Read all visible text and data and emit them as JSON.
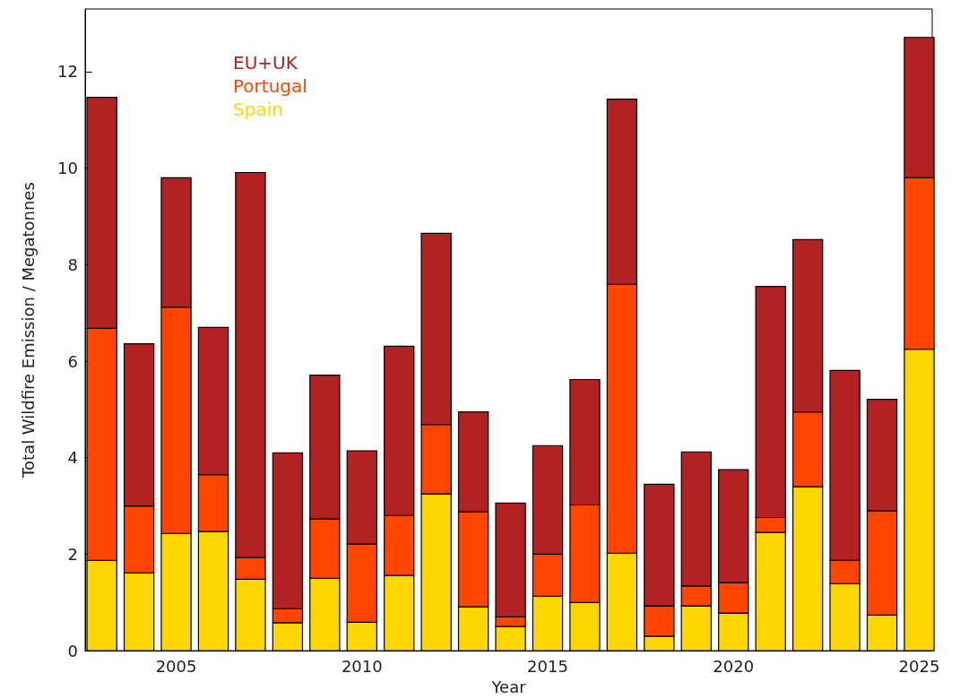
{
  "chart_data": {
    "type": "bar",
    "stacked": true,
    "xlabel": "Year",
    "ylabel": "Total Wildfire Emission / Megatonnes",
    "x": [
      2003,
      2004,
      2005,
      2006,
      2007,
      2008,
      2009,
      2010,
      2011,
      2012,
      2013,
      2014,
      2015,
      2016,
      2017,
      2018,
      2019,
      2020,
      2021,
      2022,
      2023,
      2024,
      2025
    ],
    "xlim": [
      2002.55,
      2025.35
    ],
    "xticks": [
      2005,
      2010,
      2015,
      2020,
      2025
    ],
    "ylim": [
      0,
      13.3
    ],
    "yticks": [
      0,
      2,
      4,
      6,
      8,
      10,
      12
    ],
    "grid": false,
    "legend": "top left",
    "series": [
      {
        "name": "Spain",
        "color": "#ffd700",
        "values": [
          1.87,
          1.61,
          2.43,
          2.47,
          1.48,
          0.58,
          1.5,
          0.59,
          1.56,
          3.25,
          0.91,
          0.5,
          1.13,
          1.0,
          2.02,
          0.3,
          0.93,
          0.78,
          2.45,
          3.4,
          1.39,
          0.74,
          6.25
        ]
      },
      {
        "name": "Portugal",
        "color": "#ff4500",
        "values": [
          4.81,
          1.39,
          4.69,
          1.18,
          0.45,
          0.29,
          1.23,
          1.62,
          1.24,
          1.44,
          1.97,
          0.2,
          0.87,
          2.02,
          5.57,
          0.63,
          0.41,
          0.63,
          0.31,
          1.55,
          0.48,
          2.16,
          3.55
        ]
      },
      {
        "name": "EU+UK",
        "color": "#b22222",
        "values": [
          4.79,
          3.36,
          2.68,
          3.05,
          7.98,
          3.23,
          2.98,
          1.93,
          3.51,
          3.96,
          2.07,
          2.36,
          2.25,
          2.6,
          3.84,
          2.52,
          2.78,
          2.34,
          4.79,
          3.57,
          3.94,
          2.31,
          2.91
        ]
      }
    ]
  }
}
